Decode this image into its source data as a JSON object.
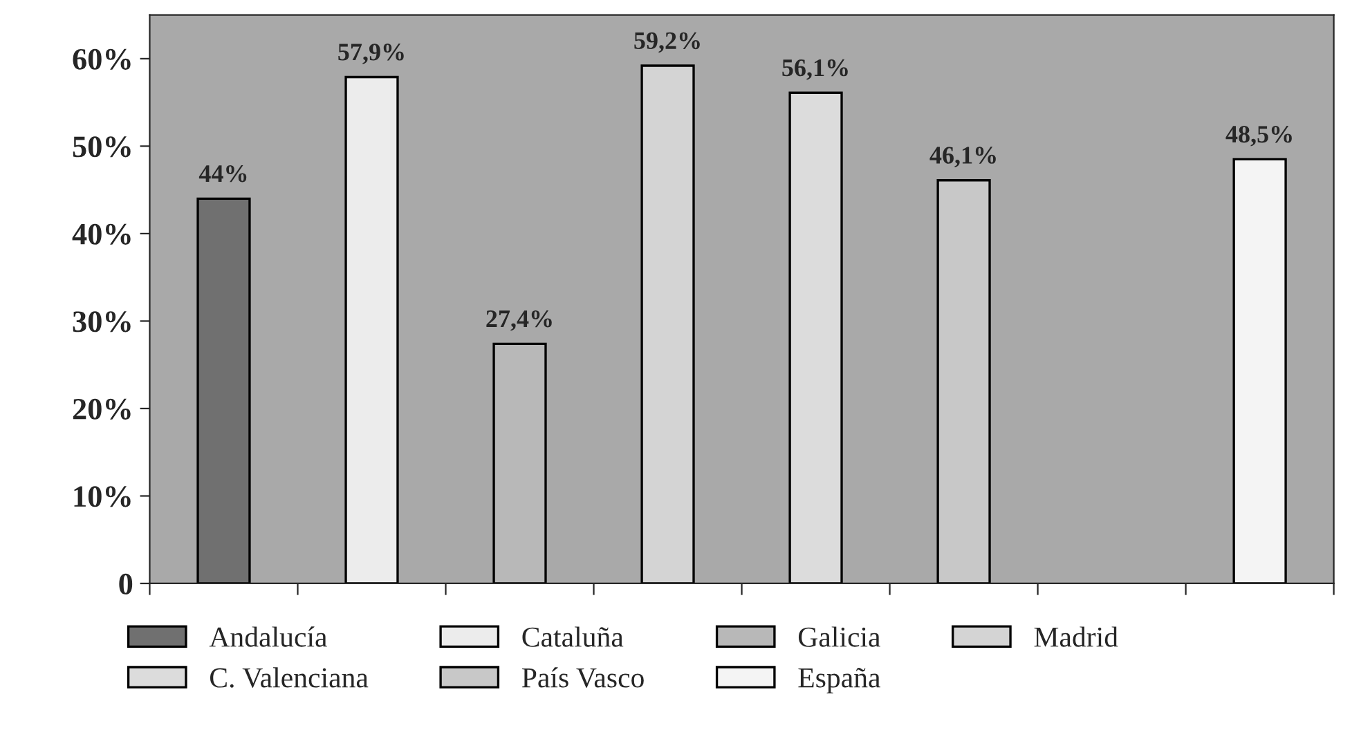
{
  "chart_data": {
    "type": "bar",
    "categories": [
      null,
      null,
      null,
      null,
      null,
      null,
      null,
      null
    ],
    "series": [
      {
        "name": "Andalucía",
        "color": "#707070",
        "values": [
          44,
          null,
          null,
          null,
          null,
          null,
          null,
          null
        ],
        "value_labels": [
          "44%",
          null,
          null,
          null,
          null,
          null,
          null,
          null
        ]
      },
      {
        "name": "Cataluña",
        "color": "#ececec",
        "values": [
          null,
          57.9,
          null,
          null,
          null,
          null,
          null,
          null
        ],
        "value_labels": [
          null,
          "57,9%",
          null,
          null,
          null,
          null,
          null,
          null
        ]
      },
      {
        "name": "Galicia",
        "color": "#b8b8b8",
        "values": [
          null,
          null,
          27.4,
          null,
          null,
          null,
          null,
          null
        ],
        "value_labels": [
          null,
          null,
          "27,4%",
          null,
          null,
          null,
          null,
          null
        ]
      },
      {
        "name": "Madrid",
        "color": "#d4d4d4",
        "values": [
          null,
          null,
          null,
          59.2,
          null,
          null,
          null,
          null
        ],
        "value_labels": [
          null,
          null,
          null,
          "59,2%",
          null,
          null,
          null,
          null
        ]
      },
      {
        "name": "C. Valenciana",
        "color": "#dcdcdc",
        "values": [
          null,
          null,
          null,
          null,
          56.1,
          null,
          null,
          null
        ],
        "value_labels": [
          null,
          null,
          null,
          null,
          "56,1%",
          null,
          null,
          null
        ]
      },
      {
        "name": "País Vasco",
        "color": "#c8c8c8",
        "values": [
          null,
          null,
          null,
          null,
          null,
          46.1,
          null,
          null
        ],
        "value_labels": [
          null,
          null,
          null,
          null,
          null,
          "46,1%",
          null,
          null
        ]
      },
      {
        "name": "España",
        "color": "#f4f4f4",
        "values": [
          null,
          null,
          null,
          null,
          null,
          null,
          null,
          48.5
        ],
        "value_labels": [
          null,
          null,
          null,
          null,
          null,
          null,
          null,
          "48,5%"
        ]
      }
    ],
    "ylim": [
      0,
      65
    ],
    "yticks": [
      {
        "value": 0,
        "label": "0"
      },
      {
        "value": 10,
        "label": "10%"
      },
      {
        "value": 20,
        "label": "20%"
      },
      {
        "value": 30,
        "label": "30%"
      },
      {
        "value": 40,
        "label": "40%"
      },
      {
        "value": 50,
        "label": "50%"
      },
      {
        "value": 60,
        "label": "60%"
      }
    ],
    "tick_labels": "y",
    "grid": false,
    "legend": "bottom"
  }
}
